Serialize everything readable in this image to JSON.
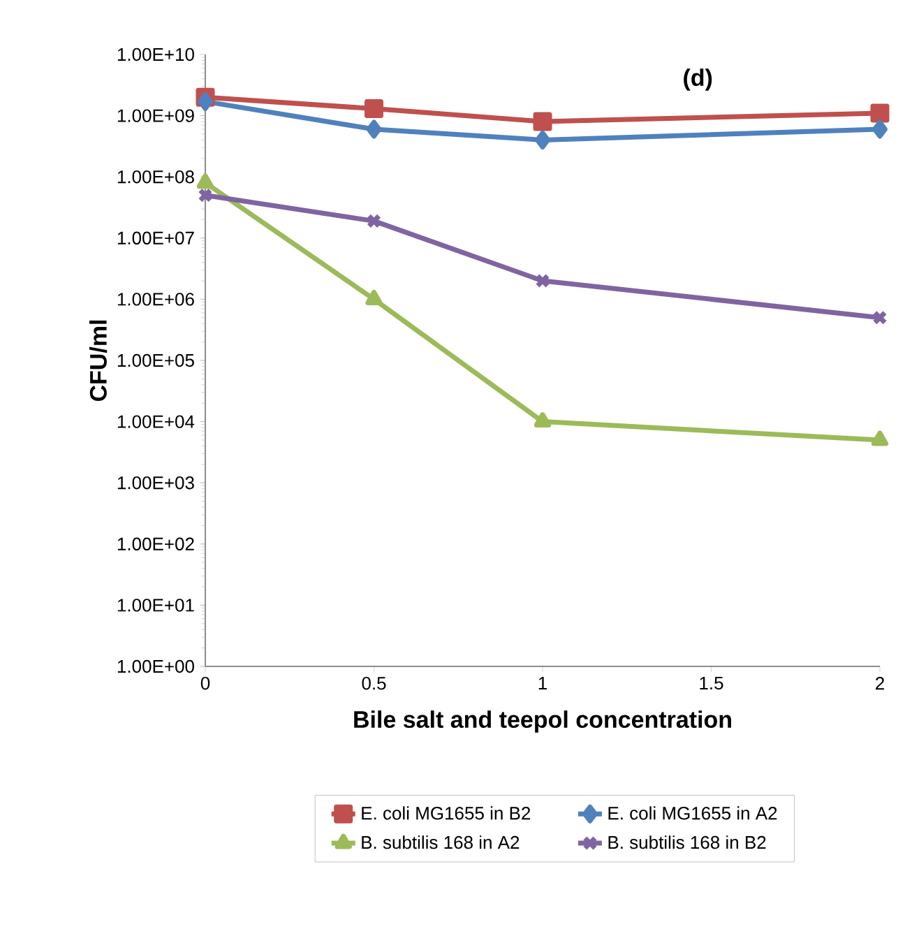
{
  "chart_data": {
    "type": "line",
    "annotations": [
      "(d)"
    ],
    "xlabel": "Bile salt and teepol concentration",
    "ylabel": "CFU/ml",
    "x": [
      0,
      0.5,
      1,
      2
    ],
    "series": [
      {
        "name": "E. coli MG1655 in B2",
        "color": "#c0504d",
        "marker": "square",
        "values": [
          2000000000,
          1300000000,
          800000000,
          1100000000
        ]
      },
      {
        "name": "E. coli MG1655 in A2",
        "color": "#4f81bd",
        "marker": "diamond",
        "values": [
          1700000000,
          600000000,
          400000000,
          600000000
        ]
      },
      {
        "name": "B. subtilis 168 in A2",
        "color": "#9bbb59",
        "marker": "triangle",
        "values": [
          80000000,
          1000000,
          10000,
          5000
        ]
      },
      {
        "name": "B. subtilis 168 in B2",
        "color": "#8064a2",
        "marker": "cross",
        "values": [
          50000000,
          19000000,
          2000000,
          500000
        ]
      }
    ],
    "log": "y",
    "grid": false,
    "legend": "bottom",
    "line_style": "solid",
    "xlim": [
      0,
      2
    ],
    "xticks": [
      0,
      0.5,
      1,
      1.5,
      2
    ],
    "ylim": [
      1,
      10000000000
    ],
    "yticks": [
      {
        "value": 1,
        "label": "1.00E+00"
      },
      {
        "value": 10,
        "label": "1.00E+01"
      },
      {
        "value": 100,
        "label": "1.00E+02"
      },
      {
        "value": 1000,
        "label": "1.00E+03"
      },
      {
        "value": 10000,
        "label": "1.00E+04"
      },
      {
        "value": 100000,
        "label": "1.00E+05"
      },
      {
        "value": 1000000,
        "label": "1.00E+06"
      },
      {
        "value": 10000000,
        "label": "1.00E+07"
      },
      {
        "value": 100000000,
        "label": "1.00E+08"
      },
      {
        "value": 1000000000,
        "label": "1.00E+09"
      },
      {
        "value": 10000000000,
        "label": "1.00E+10"
      }
    ]
  }
}
